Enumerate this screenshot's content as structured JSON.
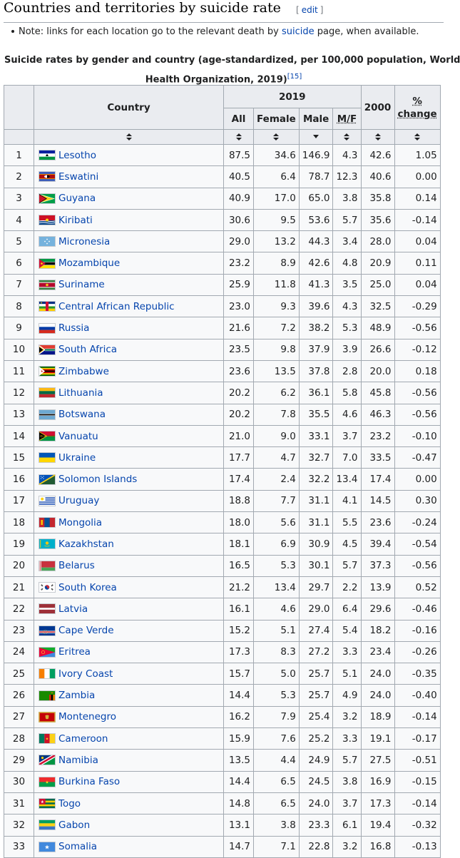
{
  "section": {
    "title": "Countries and territories by suicide rate",
    "edit_open": "[",
    "edit_label": "edit",
    "edit_close": "]"
  },
  "note": {
    "prefix": "Note: links for each location go to the relevant death by",
    "link": "suicide",
    "suffix": "page, when available."
  },
  "caption": {
    "line1": "Suicide rates by gender and country (age-standardized, per 100,000 population, World",
    "line2": "Health Organization, 2019)",
    "ref": "[15]"
  },
  "headers": {
    "country": "Country",
    "year2019": "2019",
    "all": "All",
    "female": "Female",
    "male": "Male",
    "mf": "M/F",
    "year2000": "2000",
    "pct": "%",
    "change": "change"
  },
  "rows": [
    {
      "rank": "1",
      "country": "Lesotho",
      "all": "87.5",
      "female": "34.6",
      "male": "146.9",
      "mf": "4.3",
      "y2000": "42.6",
      "change": "1.05",
      "flag": "lesotho-flag"
    },
    {
      "rank": "2",
      "country": "Eswatini",
      "all": "40.5",
      "female": "6.4",
      "male": "78.7",
      "mf": "12.3",
      "y2000": "40.6",
      "change": "0.00",
      "flag": "eswatini-flag"
    },
    {
      "rank": "3",
      "country": "Guyana",
      "all": "40.9",
      "female": "17.0",
      "male": "65.0",
      "mf": "3.8",
      "y2000": "35.8",
      "change": "0.14",
      "flag": "guyana-flag"
    },
    {
      "rank": "4",
      "country": "Kiribati",
      "all": "30.6",
      "female": "9.5",
      "male": "53.6",
      "mf": "5.7",
      "y2000": "35.6",
      "change": "-0.14",
      "flag": "kiribati-flag"
    },
    {
      "rank": "5",
      "country": "Micronesia",
      "all": "29.0",
      "female": "13.2",
      "male": "44.3",
      "mf": "3.4",
      "y2000": "28.0",
      "change": "0.04",
      "flag": "micronesia-flag"
    },
    {
      "rank": "6",
      "country": "Mozambique",
      "all": "23.2",
      "female": "8.9",
      "male": "42.6",
      "mf": "4.8",
      "y2000": "20.9",
      "change": "0.11",
      "flag": "mozambique-flag"
    },
    {
      "rank": "7",
      "country": "Suriname",
      "all": "25.9",
      "female": "11.8",
      "male": "41.3",
      "mf": "3.5",
      "y2000": "25.0",
      "change": "0.04",
      "flag": "suriname-flag"
    },
    {
      "rank": "8",
      "country": "Central African Republic",
      "all": "23.0",
      "female": "9.3",
      "male": "39.6",
      "mf": "4.3",
      "y2000": "32.5",
      "change": "-0.29",
      "flag": "car-flag"
    },
    {
      "rank": "9",
      "country": "Russia",
      "all": "21.6",
      "female": "7.2",
      "male": "38.2",
      "mf": "5.3",
      "y2000": "48.9",
      "change": "-0.56",
      "flag": "russia-flag"
    },
    {
      "rank": "10",
      "country": "South Africa",
      "all": "23.5",
      "female": "9.8",
      "male": "37.9",
      "mf": "3.9",
      "y2000": "26.6",
      "change": "-0.12",
      "flag": "south-africa-flag"
    },
    {
      "rank": "11",
      "country": "Zimbabwe",
      "all": "23.6",
      "female": "13.5",
      "male": "37.8",
      "mf": "2.8",
      "y2000": "20.0",
      "change": "0.18",
      "flag": "zimbabwe-flag"
    },
    {
      "rank": "12",
      "country": "Lithuania",
      "all": "20.2",
      "female": "6.2",
      "male": "36.1",
      "mf": "5.8",
      "y2000": "45.8",
      "change": "-0.56",
      "flag": "lithuania-flag"
    },
    {
      "rank": "13",
      "country": "Botswana",
      "all": "20.2",
      "female": "7.8",
      "male": "35.5",
      "mf": "4.6",
      "y2000": "46.3",
      "change": "-0.56",
      "flag": "botswana-flag"
    },
    {
      "rank": "14",
      "country": "Vanuatu",
      "all": "21.0",
      "female": "9.0",
      "male": "33.1",
      "mf": "3.7",
      "y2000": "23.2",
      "change": "-0.10",
      "flag": "vanuatu-flag"
    },
    {
      "rank": "15",
      "country": "Ukraine",
      "all": "17.7",
      "female": "4.7",
      "male": "32.7",
      "mf": "7.0",
      "y2000": "33.5",
      "change": "-0.47",
      "flag": "ukraine-flag"
    },
    {
      "rank": "16",
      "country": "Solomon Islands",
      "all": "17.4",
      "female": "2.4",
      "male": "32.2",
      "mf": "13.4",
      "y2000": "17.4",
      "change": "0.00",
      "flag": "solomon-islands-flag"
    },
    {
      "rank": "17",
      "country": "Uruguay",
      "all": "18.8",
      "female": "7.7",
      "male": "31.1",
      "mf": "4.1",
      "y2000": "14.5",
      "change": "0.30",
      "flag": "uruguay-flag"
    },
    {
      "rank": "18",
      "country": "Mongolia",
      "all": "18.0",
      "female": "5.6",
      "male": "31.1",
      "mf": "5.5",
      "y2000": "23.6",
      "change": "-0.24",
      "flag": "mongolia-flag"
    },
    {
      "rank": "19",
      "country": "Kazakhstan",
      "all": "18.1",
      "female": "6.9",
      "male": "30.9",
      "mf": "4.5",
      "y2000": "39.4",
      "change": "-0.54",
      "flag": "kazakhstan-flag"
    },
    {
      "rank": "20",
      "country": "Belarus",
      "all": "16.5",
      "female": "5.3",
      "male": "30.1",
      "mf": "5.7",
      "y2000": "37.3",
      "change": "-0.56",
      "flag": "belarus-flag"
    },
    {
      "rank": "21",
      "country": "South Korea",
      "all": "21.2",
      "female": "13.4",
      "male": "29.7",
      "mf": "2.2",
      "y2000": "13.9",
      "change": "0.52",
      "flag": "south-korea-flag"
    },
    {
      "rank": "22",
      "country": "Latvia",
      "all": "16.1",
      "female": "4.6",
      "male": "29.0",
      "mf": "6.4",
      "y2000": "29.6",
      "change": "-0.46",
      "flag": "latvia-flag"
    },
    {
      "rank": "23",
      "country": "Cape Verde",
      "all": "15.2",
      "female": "5.1",
      "male": "27.4",
      "mf": "5.4",
      "y2000": "18.2",
      "change": "-0.16",
      "flag": "cape-verde-flag"
    },
    {
      "rank": "24",
      "country": "Eritrea",
      "all": "17.3",
      "female": "8.3",
      "male": "27.2",
      "mf": "3.3",
      "y2000": "23.4",
      "change": "-0.26",
      "flag": "eritrea-flag"
    },
    {
      "rank": "25",
      "country": "Ivory Coast",
      "all": "15.7",
      "female": "5.0",
      "male": "25.7",
      "mf": "5.1",
      "y2000": "24.0",
      "change": "-0.35",
      "flag": "ivory-coast-flag"
    },
    {
      "rank": "26",
      "country": "Zambia",
      "all": "14.4",
      "female": "5.3",
      "male": "25.7",
      "mf": "4.9",
      "y2000": "24.0",
      "change": "-0.40",
      "flag": "zambia-flag"
    },
    {
      "rank": "27",
      "country": "Montenegro",
      "all": "16.2",
      "female": "7.9",
      "male": "25.4",
      "mf": "3.2",
      "y2000": "18.9",
      "change": "-0.14",
      "flag": "montenegro-flag"
    },
    {
      "rank": "28",
      "country": "Cameroon",
      "all": "15.9",
      "female": "7.6",
      "male": "25.2",
      "mf": "3.3",
      "y2000": "19.1",
      "change": "-0.17",
      "flag": "cameroon-flag"
    },
    {
      "rank": "29",
      "country": "Namibia",
      "all": "13.5",
      "female": "4.4",
      "male": "24.9",
      "mf": "5.7",
      "y2000": "27.5",
      "change": "-0.51",
      "flag": "namibia-flag"
    },
    {
      "rank": "30",
      "country": "Burkina Faso",
      "all": "14.4",
      "female": "6.5",
      "male": "24.5",
      "mf": "3.8",
      "y2000": "16.9",
      "change": "-0.15",
      "flag": "burkina-faso-flag"
    },
    {
      "rank": "31",
      "country": "Togo",
      "all": "14.8",
      "female": "6.5",
      "male": "24.0",
      "mf": "3.7",
      "y2000": "17.3",
      "change": "-0.14",
      "flag": "togo-flag"
    },
    {
      "rank": "32",
      "country": "Gabon",
      "all": "13.1",
      "female": "3.8",
      "male": "23.3",
      "mf": "6.1",
      "y2000": "19.4",
      "change": "-0.32",
      "flag": "gabon-flag"
    },
    {
      "rank": "33",
      "country": "Somalia",
      "all": "14.7",
      "female": "7.1",
      "male": "22.8",
      "mf": "3.2",
      "y2000": "16.8",
      "change": "-0.13",
      "flag": "somalia-flag"
    }
  ],
  "colors": {
    "link": "#0645ad",
    "header_bg": "#eaecf0",
    "border": "#a2a9b1",
    "cell_bg": "#f8f9fa"
  }
}
